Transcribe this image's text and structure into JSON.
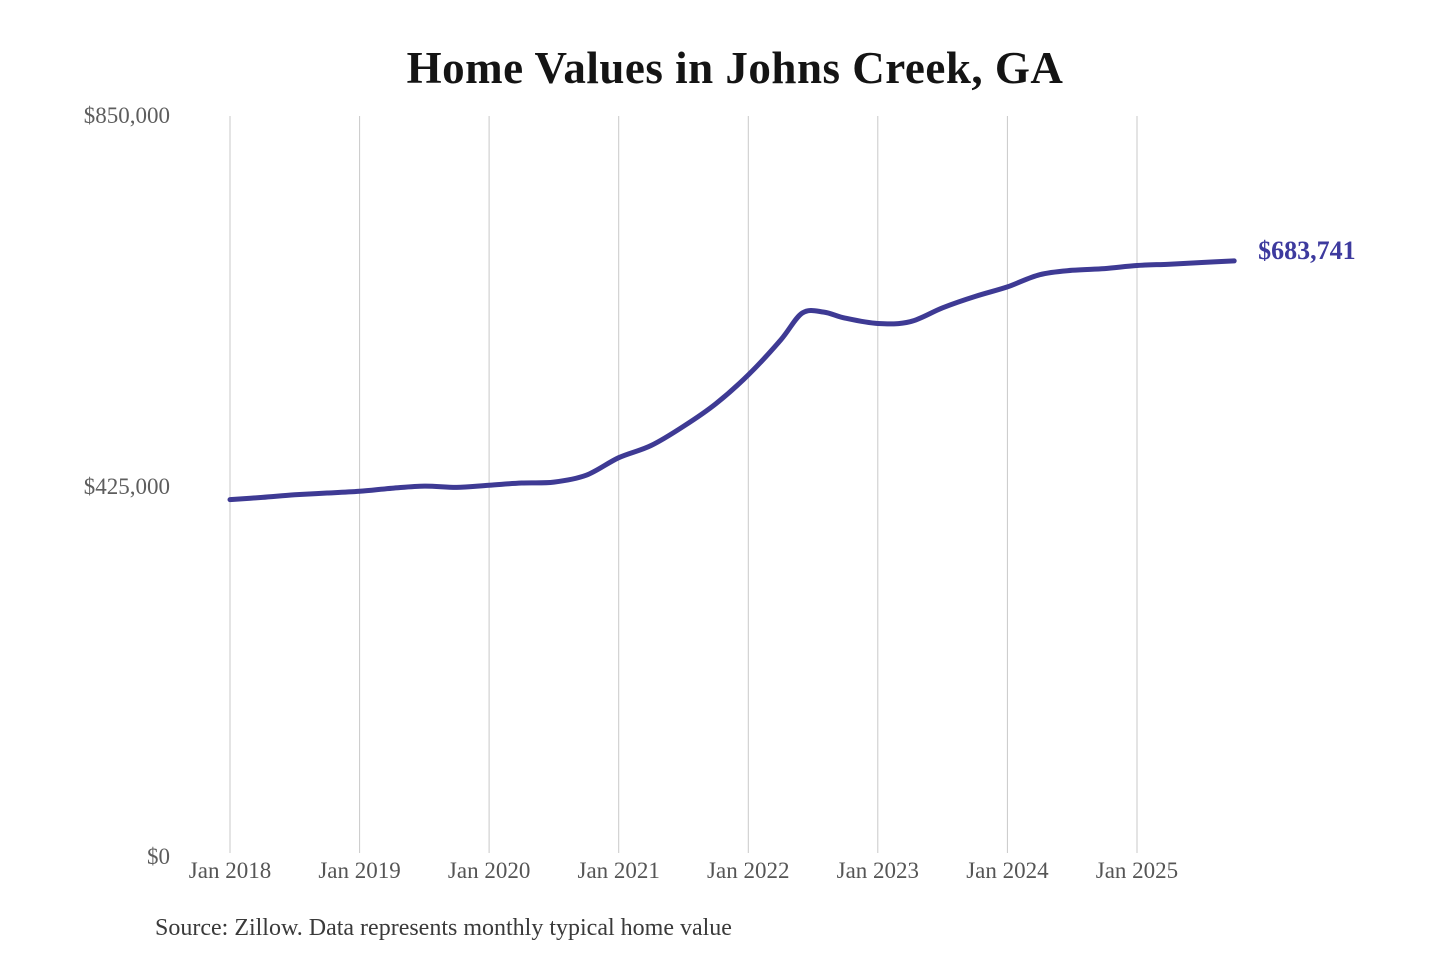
{
  "title": "Home Values in Johns Creek, GA",
  "source_note": "Source: Zillow. Data represents monthly typical home value",
  "colors": {
    "line": "#3e3a94",
    "annotation_text": "#3d3a9e",
    "grid": "#c9c9c9",
    "axis_text": "#5a5a5a",
    "title_text": "#141414",
    "source_text": "#3a3a3a",
    "background": "#ffffff"
  },
  "chart_data": {
    "type": "line",
    "title": "Home Values in Johns Creek, GA",
    "xlabel": "",
    "ylabel": "",
    "legend": "none",
    "grid": "vertical-only",
    "ylim": [
      0,
      850000
    ],
    "y_ticks": [
      850000,
      425000,
      0
    ],
    "y_tick_labels": [
      "$850,000",
      "$425,000",
      "$0"
    ],
    "x_ticks_years": [
      2018,
      2019,
      2020,
      2021,
      2022,
      2023,
      2024,
      2025
    ],
    "x_tick_labels": [
      "Jan 2018",
      "Jan 2019",
      "Jan 2020",
      "Jan 2021",
      "Jan 2022",
      "Jan 2023",
      "Jan 2024",
      "Jan 2025"
    ],
    "latest_value": 683741,
    "latest_value_label": "$683,741",
    "series": [
      {
        "name": "Monthly typical home value",
        "points": [
          [
            "2018-01",
            410000
          ],
          [
            "2018-04",
            412500
          ],
          [
            "2018-07",
            415500
          ],
          [
            "2018-10",
            417500
          ],
          [
            "2019-01",
            419500
          ],
          [
            "2019-04",
            423000
          ],
          [
            "2019-07",
            425500
          ],
          [
            "2019-10",
            424000
          ],
          [
            "2020-01",
            426500
          ],
          [
            "2020-04",
            429000
          ],
          [
            "2020-07",
            430000
          ],
          [
            "2020-10",
            438000
          ],
          [
            "2021-01",
            458000
          ],
          [
            "2021-04",
            472000
          ],
          [
            "2021-07",
            494000
          ],
          [
            "2021-10",
            520000
          ],
          [
            "2022-01",
            553000
          ],
          [
            "2022-04",
            593000
          ],
          [
            "2022-06",
            624000
          ],
          [
            "2022-08",
            625000
          ],
          [
            "2022-10",
            618000
          ],
          [
            "2023-01",
            612000
          ],
          [
            "2023-04",
            614000
          ],
          [
            "2023-07",
            630000
          ],
          [
            "2023-10",
            643000
          ],
          [
            "2024-01",
            654000
          ],
          [
            "2024-04",
            668000
          ],
          [
            "2024-07",
            673000
          ],
          [
            "2024-10",
            675000
          ],
          [
            "2025-01",
            678500
          ],
          [
            "2025-04",
            680000
          ],
          [
            "2025-07",
            682000
          ],
          [
            "2025-10",
            683741
          ]
        ]
      }
    ]
  }
}
